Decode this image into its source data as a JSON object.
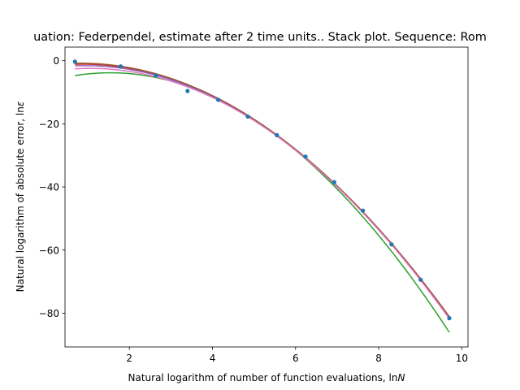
{
  "chart_data": {
    "type": "line",
    "title": "uation: Federpendel, estimate after 2 time units.. Stack plot. Sequence: Rom",
    "xlabel_text": "Natural logarithm of number of function evaluations, ln",
    "xlabel_var": "N",
    "ylabel_text": "Natural logarithm of absolute error, ln",
    "ylabel_var": "ε",
    "xlim": [
      0.45,
      10.15
    ],
    "ylim": [
      -90.7,
      4.3
    ],
    "xticks": [
      2,
      4,
      6,
      8,
      10
    ],
    "yticks": [
      0,
      -20,
      -40,
      -60,
      -80
    ],
    "grid": false,
    "points": {
      "color": "#1f77b4",
      "x": [
        0.69,
        1.79,
        2.64,
        3.4,
        4.14,
        4.85,
        5.55,
        6.24,
        6.93,
        7.62,
        8.31,
        9.01,
        9.7
      ],
      "y": [
        -0.3,
        -1.8,
        -4.7,
        -9.6,
        -12.4,
        -17.7,
        -23.6,
        -30.4,
        -38.5,
        -47.5,
        -58.2,
        -69.4,
        -81.6
      ]
    },
    "fits": [
      {
        "color": "#ff7f0e",
        "x": [
          0.69,
          2.64,
          4.85,
          6.93,
          9.7
        ],
        "y": [
          -0.5,
          -4.6,
          -17.5,
          -38.2,
          -81.3
        ]
      },
      {
        "color": "#2ca02c",
        "x": [
          0.69,
          2.64,
          4.85,
          6.93,
          9.7
        ],
        "y": [
          -4.1,
          -6.4,
          -17.6,
          -38.6,
          -86.5
        ]
      },
      {
        "color": "#d62728",
        "x": [
          0.69,
          2.64,
          4.85,
          6.93,
          9.7
        ],
        "y": [
          -0.8,
          -4.9,
          -17.6,
          -38.3,
          -81.7
        ]
      },
      {
        "color": "#9467bd",
        "x": [
          0.69,
          2.64,
          4.85,
          6.93,
          9.7
        ],
        "y": [
          -1.3,
          -5.2,
          -17.7,
          -38.4,
          -81.8
        ]
      },
      {
        "color": "#8c564b",
        "x": [
          0.69,
          2.64,
          4.85,
          6.93,
          9.7
        ],
        "y": [
          -0.6,
          -4.7,
          -17.5,
          -38.2,
          -81.4
        ]
      },
      {
        "color": "#e377c2",
        "x": [
          0.69,
          2.64,
          4.85,
          6.93,
          9.7
        ],
        "y": [
          -2.2,
          -5.8,
          -17.8,
          -38.5,
          -82.0
        ]
      }
    ]
  }
}
